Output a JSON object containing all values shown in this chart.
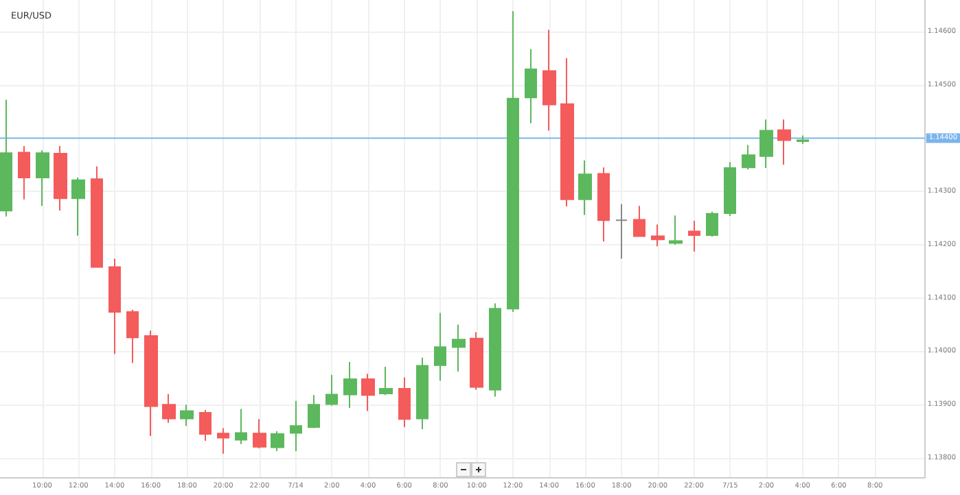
{
  "chart_data": {
    "type": "candlestick",
    "title": "EUR/USD",
    "x": [
      "--07-13T08:00",
      "--07-13T09:00",
      "--07-13T10:00",
      "--07-13T11:00",
      "--07-13T12:00",
      "--07-13T13:00",
      "--07-13T14:00",
      "--07-13T15:00",
      "--07-13T16:00",
      "--07-13T17:00",
      "--07-13T18:00",
      "--07-13T19:00",
      "--07-13T20:00",
      "--07-13T21:00",
      "--07-13T22:00",
      "--07-13T23:00",
      "--07-14T00:00",
      "--07-14T01:00",
      "--07-14T02:00",
      "--07-14T03:00",
      "--07-14T04:00",
      "--07-14T05:00",
      "--07-14T06:00",
      "--07-14T07:00",
      "--07-14T08:00",
      "--07-14T09:00",
      "--07-14T10:00",
      "--07-14T11:00",
      "--07-14T12:00",
      "--07-14T13:00",
      "--07-14T14:00",
      "--07-14T15:00",
      "--07-14T16:00",
      "--07-14T17:00",
      "--07-14T18:00",
      "--07-14T19:00",
      "--07-14T20:00",
      "--07-14T21:00",
      "--07-14T22:00",
      "--07-14T23:00",
      "--07-15T00:00",
      "--07-15T01:00",
      "--07-15T02:00",
      "--07-15T03:00",
      "--07-15T04:00"
    ],
    "ohlc": [
      [
        1.14264,
        1.14472,
        1.14253,
        1.14372
      ],
      [
        1.14373,
        1.14385,
        1.14285,
        1.14326
      ],
      [
        1.14326,
        1.14377,
        1.14273,
        1.14372
      ],
      [
        1.14371,
        1.14385,
        1.14264,
        1.14287
      ],
      [
        1.14287,
        1.14326,
        1.14217,
        1.14321
      ],
      [
        1.14323,
        1.14347,
        1.14158,
        1.14158
      ],
      [
        1.14158,
        1.14174,
        1.13995,
        1.14074
      ],
      [
        1.14074,
        1.14078,
        1.13978,
        1.14026
      ],
      [
        1.14029,
        1.14039,
        1.13841,
        1.13897
      ],
      [
        1.139,
        1.1392,
        1.13866,
        1.13874
      ],
      [
        1.13874,
        1.139,
        1.1386,
        1.13888
      ],
      [
        1.13885,
        1.1389,
        1.13832,
        1.13845
      ],
      [
        1.13846,
        1.13856,
        1.13808,
        1.13838
      ],
      [
        1.13834,
        1.13892,
        1.13826,
        1.13847
      ],
      [
        1.13846,
        1.13873,
        1.13818,
        1.13821
      ],
      [
        1.1382,
        1.1385,
        1.13813,
        1.13845
      ],
      [
        1.13847,
        1.13907,
        1.13813,
        1.1386
      ],
      [
        1.13858,
        1.13918,
        1.13856,
        1.139
      ],
      [
        1.13901,
        1.13956,
        1.13898,
        1.13919
      ],
      [
        1.13919,
        1.1398,
        1.13894,
        1.13948
      ],
      [
        1.13948,
        1.13958,
        1.13888,
        1.13918
      ],
      [
        1.13921,
        1.13971,
        1.13918,
        1.1393
      ],
      [
        1.1393,
        1.13951,
        1.13858,
        1.13873
      ],
      [
        1.13874,
        1.13988,
        1.13854,
        1.13973
      ],
      [
        1.13974,
        1.14072,
        1.13945,
        1.14008
      ],
      [
        1.14008,
        1.1405,
        1.13962,
        1.14022
      ],
      [
        1.14024,
        1.14036,
        1.13928,
        1.13933
      ],
      [
        1.13928,
        1.1409,
        1.13915,
        1.1408
      ],
      [
        1.1408,
        1.14638,
        1.14074,
        1.14474
      ],
      [
        1.14476,
        1.14567,
        1.14428,
        1.14529
      ],
      [
        1.14526,
        1.14603,
        1.14414,
        1.14463
      ],
      [
        1.14464,
        1.1455,
        1.14272,
        1.14285
      ],
      [
        1.14285,
        1.14358,
        1.14256,
        1.14332
      ],
      [
        1.14333,
        1.14345,
        1.14206,
        1.14246
      ],
      [
        1.14246,
        1.14276,
        1.14174,
        1.14246
      ],
      [
        1.14247,
        1.14273,
        1.14215,
        1.14216
      ],
      [
        1.14216,
        1.14238,
        1.14197,
        1.1421
      ],
      [
        1.14203,
        1.14255,
        1.142,
        1.14207
      ],
      [
        1.14225,
        1.14245,
        1.14187,
        1.14218
      ],
      [
        1.14218,
        1.14262,
        1.14215,
        1.14258
      ],
      [
        1.14259,
        1.14355,
        1.14254,
        1.14344
      ],
      [
        1.14345,
        1.14387,
        1.14341,
        1.14368
      ],
      [
        1.14366,
        1.14435,
        1.14344,
        1.14414
      ],
      [
        1.14415,
        1.14435,
        1.1435,
        1.14396
      ],
      [
        1.14394,
        1.14405,
        1.14389,
        1.14396
      ]
    ],
    "colors": [
      "#5cb85c",
      "#f45b5b",
      "#5cb85c",
      "#f45b5b",
      "#5cb85c",
      "#f45b5b",
      "#f45b5b",
      "#f45b5b",
      "#f45b5b",
      "#f45b5b",
      "#5cb85c",
      "#f45b5b",
      "#f45b5b",
      "#5cb85c",
      "#f45b5b",
      "#5cb85c",
      "#5cb85c",
      "#5cb85c",
      "#5cb85c",
      "#5cb85c",
      "#f45b5b",
      "#5cb85c",
      "#f45b5b",
      "#5cb85c",
      "#5cb85c",
      "#5cb85c",
      "#f45b5b",
      "#5cb85c",
      "#5cb85c",
      "#5cb85c",
      "#f45b5b",
      "#f45b5b",
      "#5cb85c",
      "#f45b5b",
      "#888888",
      "#f45b5b",
      "#f45b5b",
      "#5cb85c",
      "#f45b5b",
      "#5cb85c",
      "#5cb85c",
      "#5cb85c",
      "#5cb85c",
      "#f45b5b",
      "#5cb85c"
    ],
    "xlim": [
      "--07-13T07:40",
      "--07-15T10:45"
    ],
    "xticks": [
      {
        "value": "--07-13T10:00",
        "label": "10:00"
      },
      {
        "value": "--07-13T12:00",
        "label": "12:00"
      },
      {
        "value": "--07-13T14:00",
        "label": "14:00"
      },
      {
        "value": "--07-13T16:00",
        "label": "16:00"
      },
      {
        "value": "--07-13T18:00",
        "label": "18:00"
      },
      {
        "value": "--07-13T20:00",
        "label": "20:00"
      },
      {
        "value": "--07-13T22:00",
        "label": "22:00"
      },
      {
        "value": "--07-14T00:00",
        "label": "7/14"
      },
      {
        "value": "--07-14T02:00",
        "label": "2:00"
      },
      {
        "value": "--07-14T04:00",
        "label": "4:00"
      },
      {
        "value": "--07-14T06:00",
        "label": "6:00"
      },
      {
        "value": "--07-14T08:00",
        "label": "8:00"
      },
      {
        "value": "--07-14T10:00",
        "label": "10:00"
      },
      {
        "value": "--07-14T12:00",
        "label": "12:00"
      },
      {
        "value": "--07-14T14:00",
        "label": "14:00"
      },
      {
        "value": "--07-14T16:00",
        "label": "16:00"
      },
      {
        "value": "--07-14T18:00",
        "label": "18:00"
      },
      {
        "value": "--07-14T20:00",
        "label": "20:00"
      },
      {
        "value": "--07-14T22:00",
        "label": "22:00"
      },
      {
        "value": "--07-15T00:00",
        "label": "7/15"
      },
      {
        "value": "--07-15T02:00",
        "label": "2:00"
      },
      {
        "value": "--07-15T04:00",
        "label": "4:00"
      },
      {
        "value": "--07-15T06:00",
        "label": "6:00"
      },
      {
        "value": "--07-15T08:00",
        "label": "8:00"
      }
    ],
    "ylim": [
      1.13764,
      1.14659
    ],
    "yticks": [
      {
        "value": 1.138,
        "label": "1.13800"
      },
      {
        "value": 1.139,
        "label": "1.13900"
      },
      {
        "value": 1.14,
        "label": "1.14000"
      },
      {
        "value": 1.141,
        "label": "1.14100"
      },
      {
        "value": 1.142,
        "label": "1.14200"
      },
      {
        "value": 1.143,
        "label": "1.14300"
      },
      {
        "value": 1.145,
        "label": "1.14500"
      },
      {
        "value": 1.146,
        "label": "1.14600"
      }
    ],
    "ref_lines": [
      {
        "axis": "y",
        "value": 1.144,
        "label": "1.14400",
        "color": "#7cb5ec",
        "line_style": "solid"
      }
    ],
    "grid": true
  }
}
